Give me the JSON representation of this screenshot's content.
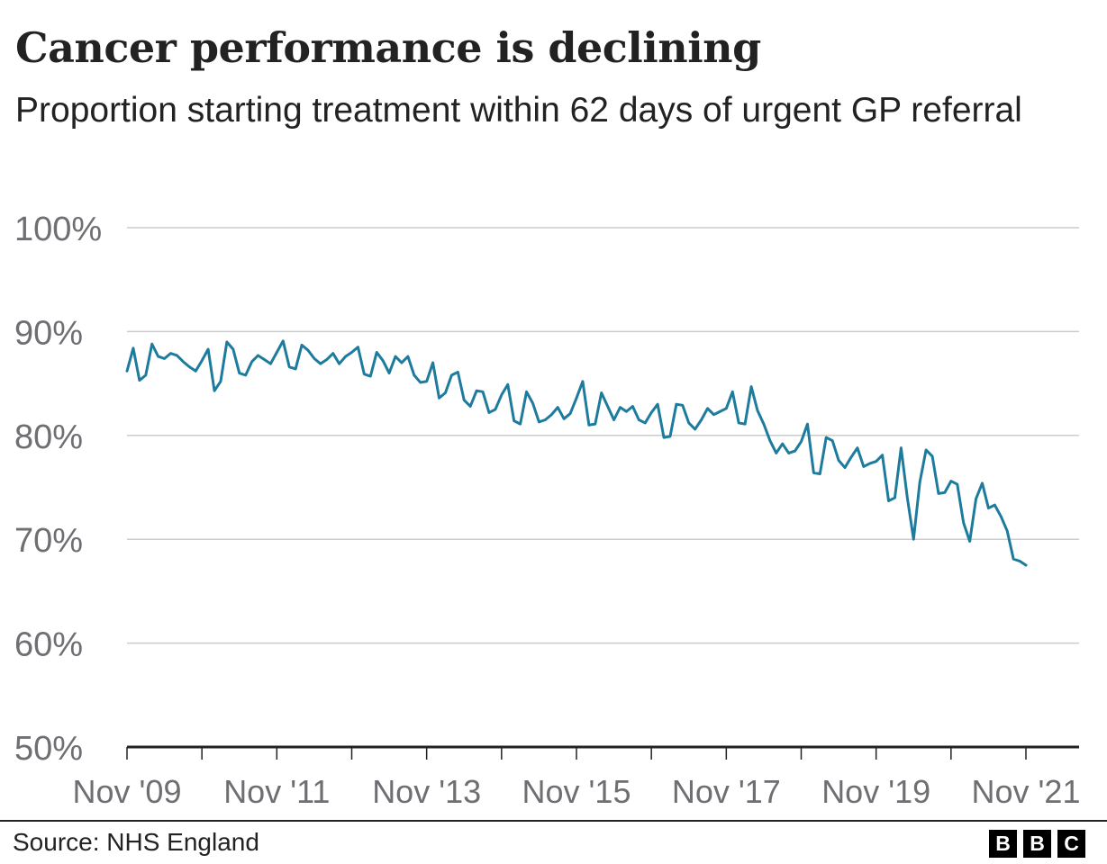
{
  "header": {
    "title": "Cancer performance is declining",
    "subtitle": "Proportion starting treatment within 62 days of urgent GP referral"
  },
  "footer": {
    "source": "Source: NHS England",
    "logo": [
      "B",
      "B",
      "C"
    ]
  },
  "colors": {
    "line": "#1d7b9e",
    "grid": "#cccccc",
    "axis": "#222222",
    "tick_text": "#6e6e73"
  },
  "chart_data": {
    "type": "line",
    "title": "Cancer performance is declining",
    "subtitle": "Proportion starting treatment within 62 days of urgent GP referral",
    "xlabel": "",
    "ylabel": "",
    "x_range": [
      "2009-11",
      "2021-11"
    ],
    "ylim": [
      50,
      100
    ],
    "y_ticks": [
      50,
      60,
      70,
      80,
      90,
      100
    ],
    "y_tick_labels": [
      "50%",
      "60%",
      "70%",
      "80%",
      "90%",
      "100%"
    ],
    "x_ticks": [
      "2009-11",
      "2011-11",
      "2013-11",
      "2015-11",
      "2017-11",
      "2019-11",
      "2021-11"
    ],
    "x_tick_labels": [
      "Nov '09",
      "Nov '11",
      "Nov '13",
      "Nov '15",
      "Nov '17",
      "Nov '19",
      "Nov '21"
    ],
    "grid": true,
    "legend": "none",
    "series": [
      {
        "start": "2009-11",
        "frequency": "monthly",
        "values": [
          86.2,
          88.4,
          85.3,
          85.8,
          88.8,
          87.6,
          87.4,
          87.9,
          87.7,
          87.1,
          86.6,
          86.2,
          87.2,
          88.3,
          84.3,
          85.2,
          89.0,
          88.3,
          86.0,
          85.8,
          87.1,
          87.7,
          87.3,
          86.9,
          88.0,
          89.1,
          86.6,
          86.4,
          88.7,
          88.2,
          87.4,
          86.9,
          87.3,
          87.9,
          86.9,
          87.6,
          88.0,
          88.5,
          85.9,
          85.7,
          88.0,
          87.2,
          86.0,
          87.6,
          87.0,
          87.6,
          85.8,
          85.1,
          85.2,
          87.0,
          83.6,
          84.1,
          85.8,
          86.1,
          83.4,
          82.8,
          84.3,
          84.2,
          82.2,
          82.5,
          83.9,
          84.9,
          81.4,
          81.1,
          84.2,
          83.1,
          81.3,
          81.5,
          82.0,
          82.7,
          81.6,
          82.1,
          83.6,
          85.2,
          81.0,
          81.1,
          84.1,
          82.8,
          81.5,
          82.7,
          82.3,
          82.8,
          81.5,
          81.2,
          82.2,
          83.0,
          79.8,
          79.9,
          83.0,
          82.9,
          81.2,
          80.6,
          81.5,
          82.6,
          82.0,
          82.3,
          82.6,
          84.2,
          81.2,
          81.1,
          84.7,
          82.4,
          81.1,
          79.5,
          78.3,
          79.2,
          78.3,
          78.5,
          79.4,
          81.1,
          76.4,
          76.3,
          79.8,
          79.5,
          77.6,
          76.9,
          77.9,
          78.8,
          77.0,
          77.3,
          77.5,
          78.1,
          73.7,
          74.0,
          78.8,
          74.0,
          70.0,
          75.5,
          78.6,
          78.0,
          74.4,
          74.5,
          75.6,
          75.3,
          71.6,
          69.8,
          73.9,
          75.4,
          73.0,
          73.3,
          72.2,
          70.8,
          68.1,
          67.9,
          67.5
        ]
      }
    ]
  }
}
